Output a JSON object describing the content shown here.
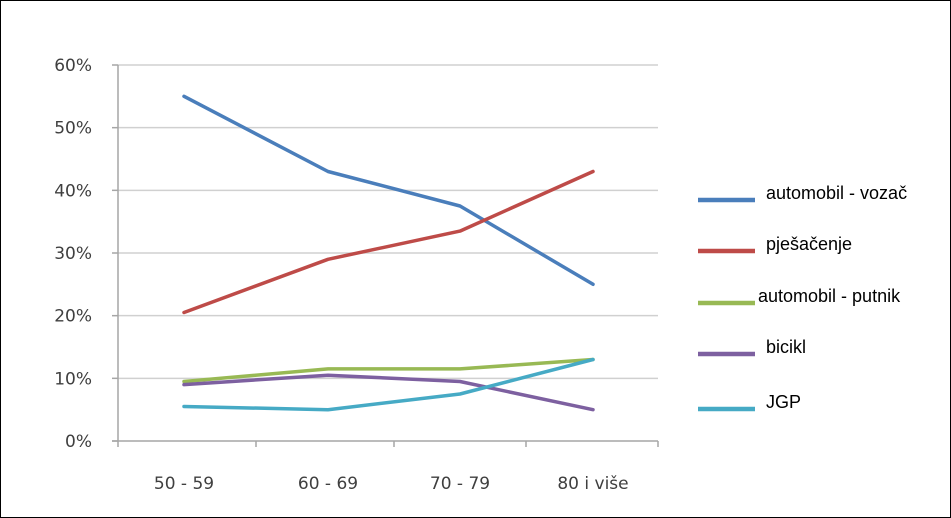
{
  "chart_data": {
    "type": "line",
    "title": "",
    "xlabel": "",
    "ylabel": "",
    "categories": [
      "50 - 59",
      "60 - 69",
      "70 - 79",
      "80 i više"
    ],
    "y_ticks": [
      "0%",
      "10%",
      "20%",
      "30%",
      "40%",
      "50%",
      "60%"
    ],
    "ylim": [
      0,
      60
    ],
    "y_unit": "%",
    "grid": true,
    "legend_position": "right",
    "series": [
      {
        "name": "automobil - vozač",
        "color": "#4a7ebb",
        "values": [
          55,
          43,
          37.5,
          25
        ]
      },
      {
        "name": "pješačenje",
        "color": "#be4b48",
        "values": [
          20.5,
          29,
          33.5,
          43
        ]
      },
      {
        "name": "automobil - putnik",
        "color": "#98b954",
        "values": [
          9.5,
          11.5,
          11.5,
          13
        ]
      },
      {
        "name": "bicikl",
        "color": "#7d60a0",
        "values": [
          9,
          10.5,
          9.5,
          5
        ]
      },
      {
        "name": "JGP",
        "color": "#46aac5",
        "values": [
          5.5,
          5,
          7.5,
          13
        ]
      }
    ]
  }
}
